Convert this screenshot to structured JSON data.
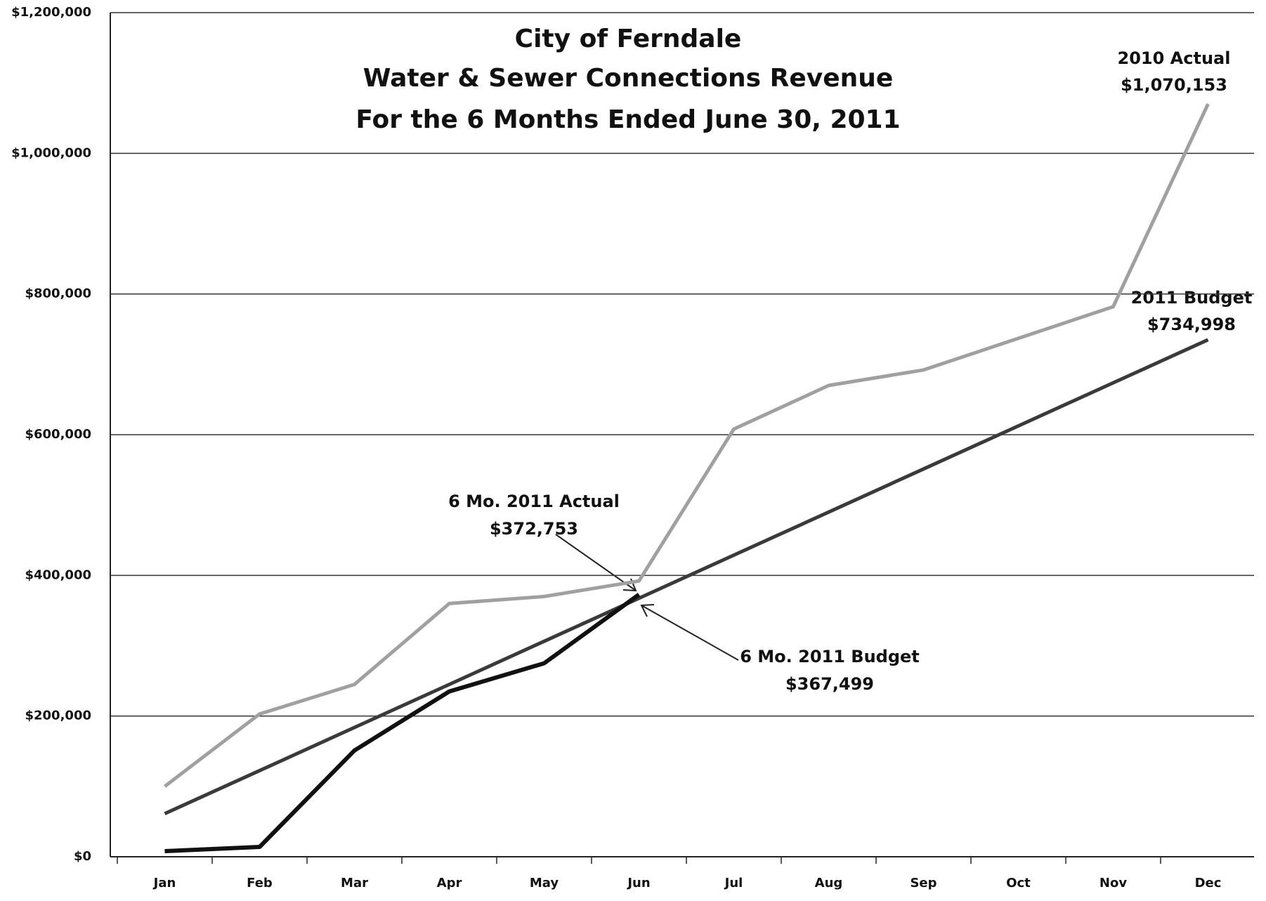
{
  "chart_data": {
    "type": "line",
    "title": [
      "City of Ferndale",
      "Water & Sewer Connections Revenue",
      "For the 6 Months Ended June 30, 2011"
    ],
    "categories": [
      "Jan",
      "Feb",
      "Mar",
      "Apr",
      "May",
      "Jun",
      "Jul",
      "Aug",
      "Sep",
      "Oct",
      "Nov",
      "Dec"
    ],
    "series": [
      {
        "name": "2010 Actual",
        "color": "#a0a0a0",
        "width": 5,
        "values": [
          100000,
          203000,
          245000,
          360000,
          370000,
          392000,
          608000,
          670000,
          692000,
          737000,
          782000,
          1070153
        ]
      },
      {
        "name": "2011 Budget",
        "color": "#3a3a3a",
        "width": 5,
        "values": [
          61250,
          122500,
          183750,
          245000,
          306250,
          367499,
          428749,
          489999,
          551249,
          612498,
          673748,
          734998
        ]
      },
      {
        "name": "2011 Actual",
        "color": "#111111",
        "width": 6,
        "values": [
          8000,
          14000,
          151000,
          235000,
          275000,
          372753,
          null,
          null,
          null,
          null,
          null,
          null
        ]
      }
    ],
    "annotations": [
      {
        "lines": [
          "2010 Actual",
          "$1,070,153"
        ]
      },
      {
        "lines": [
          "2011 Budget",
          "$734,998"
        ]
      },
      {
        "lines": [
          "6 Mo. 2011 Actual",
          "$372,753"
        ]
      },
      {
        "lines": [
          "6 Mo. 2011 Budget",
          "$367,499"
        ]
      }
    ],
    "ylim": [
      0,
      1200000
    ],
    "yticks": [
      {
        "value": 0,
        "label": "$0"
      },
      {
        "value": 200000,
        "label": "$200,000"
      },
      {
        "value": 400000,
        "label": "$400,000"
      },
      {
        "value": 600000,
        "label": "$600,000"
      },
      {
        "value": 800000,
        "label": "$800,000"
      },
      {
        "value": 1000000,
        "label": "$1,000,000"
      },
      {
        "value": 1200000,
        "label": "$1,200,000"
      }
    ],
    "grid": true
  }
}
